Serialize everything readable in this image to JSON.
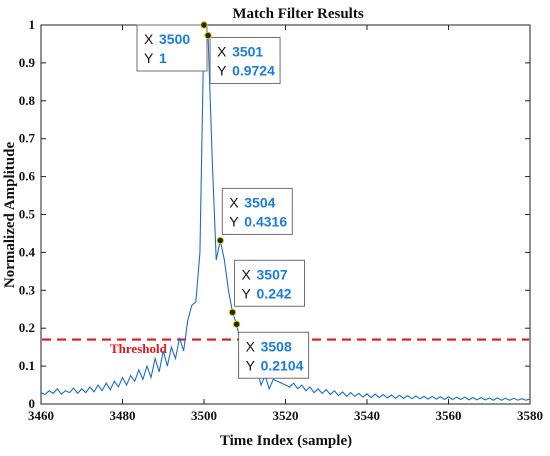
{
  "chart_data": {
    "type": "line",
    "title": "Match Filter Results",
    "xlabel": "Time Index (sample)",
    "ylabel": "Normalized Amplitude",
    "xlim": [
      3460,
      3580
    ],
    "ylim": [
      0,
      1
    ],
    "xticks": [
      "3460",
      "3480",
      "3500",
      "3520",
      "3540",
      "3560",
      "3580"
    ],
    "yticks": [
      "0",
      "0.1",
      "0.2",
      "0.3",
      "0.4",
      "0.5",
      "0.6",
      "0.7",
      "0.8",
      "0.9",
      "1"
    ],
    "grid": false,
    "line_color": "#1a6fc4",
    "threshold": {
      "label": "Threshold",
      "value": 0.17,
      "color": "#e8141b"
    },
    "series": [
      {
        "x": [
          3460,
          3461,
          3462,
          3463,
          3464,
          3465,
          3466,
          3467,
          3468,
          3469,
          3470,
          3471,
          3472,
          3473,
          3474,
          3475,
          3476,
          3477,
          3478,
          3479,
          3480,
          3481,
          3482,
          3483,
          3484,
          3485,
          3486,
          3487,
          3488,
          3489,
          3490,
          3491,
          3492,
          3493,
          3494,
          3495,
          3496,
          3497,
          3498,
          3499,
          3500,
          3501,
          3502,
          3503,
          3504,
          3505,
          3506,
          3507,
          3508,
          3509,
          3510,
          3511,
          3512,
          3513,
          3514,
          3515,
          3516,
          3517,
          3518,
          3519,
          3520,
          3521,
          3522,
          3523,
          3524,
          3525,
          3526,
          3527,
          3528,
          3529,
          3530,
          3531,
          3532,
          3533,
          3534,
          3535,
          3536,
          3537,
          3538,
          3539,
          3540,
          3541,
          3542,
          3543,
          3544,
          3545,
          3546,
          3547,
          3548,
          3549,
          3550,
          3551,
          3552,
          3553,
          3554,
          3555,
          3556,
          3557,
          3558,
          3559,
          3560,
          3561,
          3562,
          3563,
          3564,
          3565,
          3566,
          3567,
          3568,
          3569,
          3570,
          3571,
          3572,
          3573,
          3574,
          3575,
          3576,
          3577,
          3578,
          3579,
          3580
        ],
        "y": [
          0.03,
          0.025,
          0.035,
          0.028,
          0.04,
          0.026,
          0.035,
          0.03,
          0.042,
          0.028,
          0.04,
          0.03,
          0.045,
          0.032,
          0.05,
          0.035,
          0.055,
          0.038,
          0.06,
          0.045,
          0.07,
          0.05,
          0.075,
          0.06,
          0.09,
          0.065,
          0.1,
          0.07,
          0.12,
          0.085,
          0.14,
          0.1,
          0.15,
          0.12,
          0.175,
          0.14,
          0.22,
          0.26,
          0.27,
          0.4,
          1,
          0.9724,
          0.65,
          0.38,
          0.4316,
          0.38,
          0.3,
          0.242,
          0.2104,
          0.16,
          0.12,
          0.1,
          0.07,
          0.09,
          0.05,
          0.075,
          0.04,
          0.065,
          0.06,
          0.055,
          0.05,
          0.045,
          0.055,
          0.04,
          0.05,
          0.035,
          0.045,
          0.03,
          0.04,
          0.028,
          0.038,
          0.025,
          0.035,
          0.022,
          0.032,
          0.02,
          0.03,
          0.02,
          0.028,
          0.018,
          0.027,
          0.017,
          0.026,
          0.017,
          0.025,
          0.016,
          0.024,
          0.015,
          0.023,
          0.015,
          0.022,
          0.014,
          0.021,
          0.014,
          0.02,
          0.013,
          0.02,
          0.013,
          0.019,
          0.012,
          0.019,
          0.012,
          0.018,
          0.012,
          0.018,
          0.011,
          0.017,
          0.011,
          0.017,
          0.011,
          0.016,
          0.01,
          0.016,
          0.01,
          0.015,
          0.01,
          0.015,
          0.01,
          0.014,
          0.01,
          0.013
        ]
      }
    ],
    "datatips": [
      {
        "x": 3500,
        "y": 1,
        "x_text": "3500",
        "y_text": "1",
        "box": "left"
      },
      {
        "x": 3501,
        "y": 0.9724,
        "x_text": "3501",
        "y_text": "0.9724",
        "box": "right"
      },
      {
        "x": 3504,
        "y": 0.4316,
        "x_text": "3504",
        "y_text": "0.4316",
        "box": "right-above"
      },
      {
        "x": 3507,
        "y": 0.242,
        "x_text": "3507",
        "y_text": "0.242",
        "box": "right-above"
      },
      {
        "x": 3508,
        "y": 0.2104,
        "x_text": "3508",
        "y_text": "0.2104",
        "box": "right-below"
      }
    ],
    "datatip_keys": {
      "x": "X",
      "y": "Y"
    }
  }
}
